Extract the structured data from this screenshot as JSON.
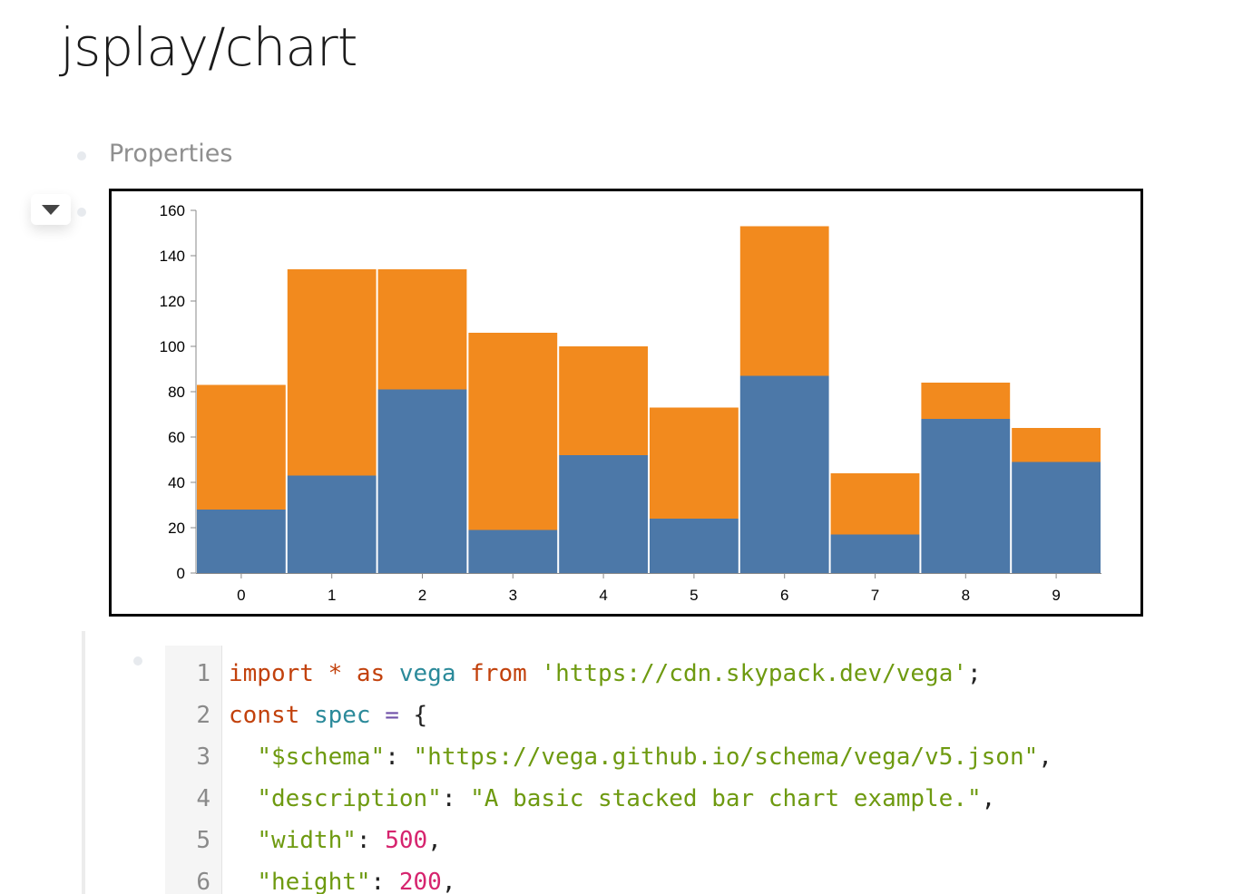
{
  "page": {
    "title": "jsplay/chart"
  },
  "properties": {
    "label": "Properties"
  },
  "colors": {
    "series_a": "#4c78a8",
    "series_b": "#f28a1e"
  },
  "chart_data": {
    "type": "bar",
    "stacked": true,
    "categories": [
      "0",
      "1",
      "2",
      "3",
      "4",
      "5",
      "6",
      "7",
      "8",
      "9"
    ],
    "series": [
      {
        "values": [
          28,
          43,
          81,
          19,
          52,
          24,
          87,
          17,
          68,
          49
        ]
      },
      {
        "values": [
          55,
          91,
          53,
          87,
          48,
          49,
          66,
          27,
          16,
          15
        ]
      }
    ],
    "ylim": [
      0,
      160
    ],
    "yticks": [
      "0",
      "20",
      "40",
      "60",
      "80",
      "100",
      "120",
      "140",
      "160"
    ],
    "grid": false,
    "xlabel": "",
    "ylabel": ""
  },
  "code": {
    "lines": [
      {
        "n": "1",
        "tokens": [
          {
            "t": "import",
            "c": "kw"
          },
          {
            "t": " ",
            "c": "punct"
          },
          {
            "t": "*",
            "c": "kw"
          },
          {
            "t": " ",
            "c": "punct"
          },
          {
            "t": "as",
            "c": "kw"
          },
          {
            "t": " ",
            "c": "punct"
          },
          {
            "t": "vega",
            "c": "def"
          },
          {
            "t": " ",
            "c": "punct"
          },
          {
            "t": "from",
            "c": "kw"
          },
          {
            "t": " ",
            "c": "punct"
          },
          {
            "t": "'https://cdn.skypack.dev/vega'",
            "c": "str"
          },
          {
            "t": ";",
            "c": "punct"
          }
        ]
      },
      {
        "n": "2",
        "tokens": [
          {
            "t": "const",
            "c": "kw"
          },
          {
            "t": " ",
            "c": "punct"
          },
          {
            "t": "spec",
            "c": "def"
          },
          {
            "t": " ",
            "c": "punct"
          },
          {
            "t": "=",
            "c": "op"
          },
          {
            "t": " {",
            "c": "punct"
          }
        ]
      },
      {
        "n": "3",
        "tokens": [
          {
            "t": "  ",
            "c": "punct"
          },
          {
            "t": "\"$schema\"",
            "c": "str"
          },
          {
            "t": ": ",
            "c": "punct"
          },
          {
            "t": "\"https://vega.github.io/schema/vega/v5.json\"",
            "c": "str"
          },
          {
            "t": ",",
            "c": "punct"
          }
        ]
      },
      {
        "n": "4",
        "tokens": [
          {
            "t": "  ",
            "c": "punct"
          },
          {
            "t": "\"description\"",
            "c": "str"
          },
          {
            "t": ": ",
            "c": "punct"
          },
          {
            "t": "\"A basic stacked bar chart example.\"",
            "c": "str"
          },
          {
            "t": ",",
            "c": "punct"
          }
        ]
      },
      {
        "n": "5",
        "tokens": [
          {
            "t": "  ",
            "c": "punct"
          },
          {
            "t": "\"width\"",
            "c": "str"
          },
          {
            "t": ": ",
            "c": "punct"
          },
          {
            "t": "500",
            "c": "num"
          },
          {
            "t": ",",
            "c": "punct"
          }
        ]
      },
      {
        "n": "6",
        "tokens": [
          {
            "t": "  ",
            "c": "punct"
          },
          {
            "t": "\"height\"",
            "c": "str"
          },
          {
            "t": ": ",
            "c": "punct"
          },
          {
            "t": "200",
            "c": "num"
          },
          {
            "t": ",",
            "c": "punct"
          }
        ]
      }
    ]
  }
}
